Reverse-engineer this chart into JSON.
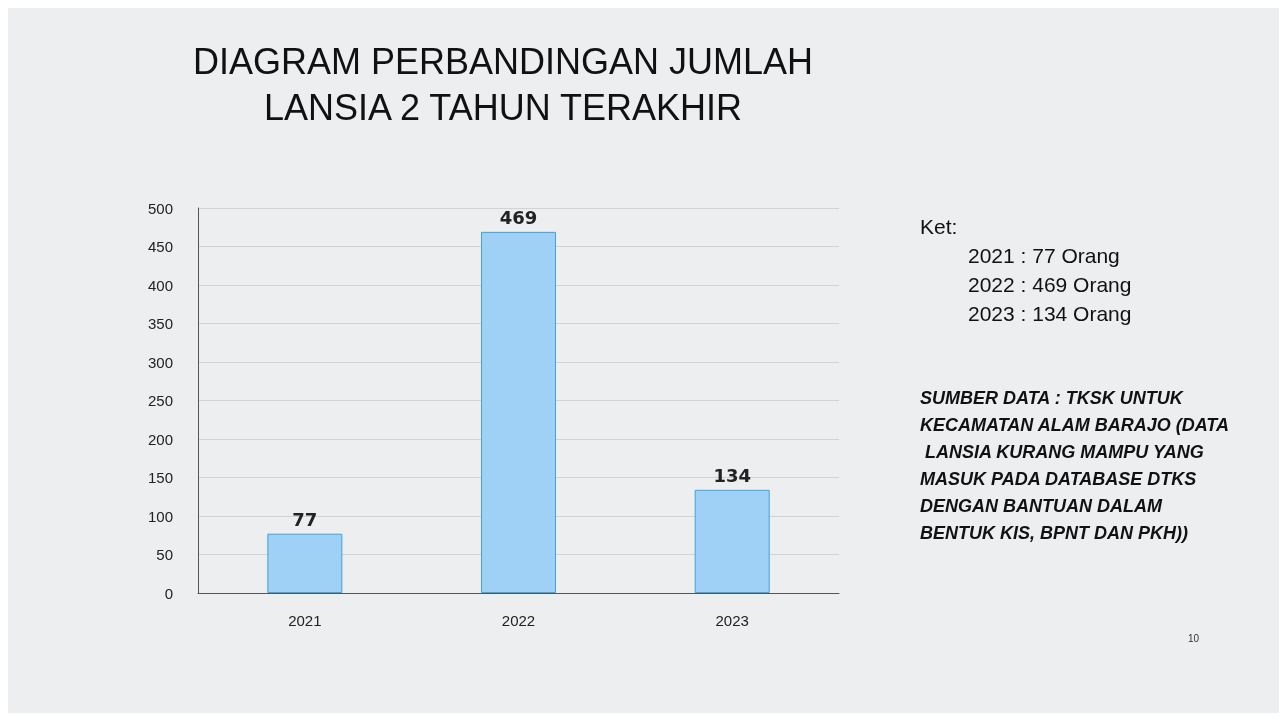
{
  "chart_data": {
    "type": "bar",
    "title": "DIAGRAM PERBANDINGAN JUMLAH\nLANSIA 2 TAHUN TERAKHIR",
    "categories": [
      "2021",
      "2022",
      "2023"
    ],
    "values": [
      77,
      469,
      134
    ],
    "color": "#9fd0f5",
    "data_labels": true,
    "ylim": [
      0,
      500
    ],
    "yticks": [
      0,
      50,
      100,
      150,
      200,
      250,
      300,
      350,
      400,
      450,
      500
    ],
    "grid": "y",
    "annotations": [
      "Ket:",
      "2021 : 77 Orang",
      "2022 : 469 Orang",
      "2023 : 134 Orang",
      "SUMBER DATA : TKSK UNTUK KECAMATAN ALAM BARAJO (DATA LANSIA KURANG MAMPU YANG MASUK PADA DATABASE DTKS DENGAN BANTUAN DALAM BENTUK KIS, BPNT DAN PKH))",
      "10"
    ]
  }
}
